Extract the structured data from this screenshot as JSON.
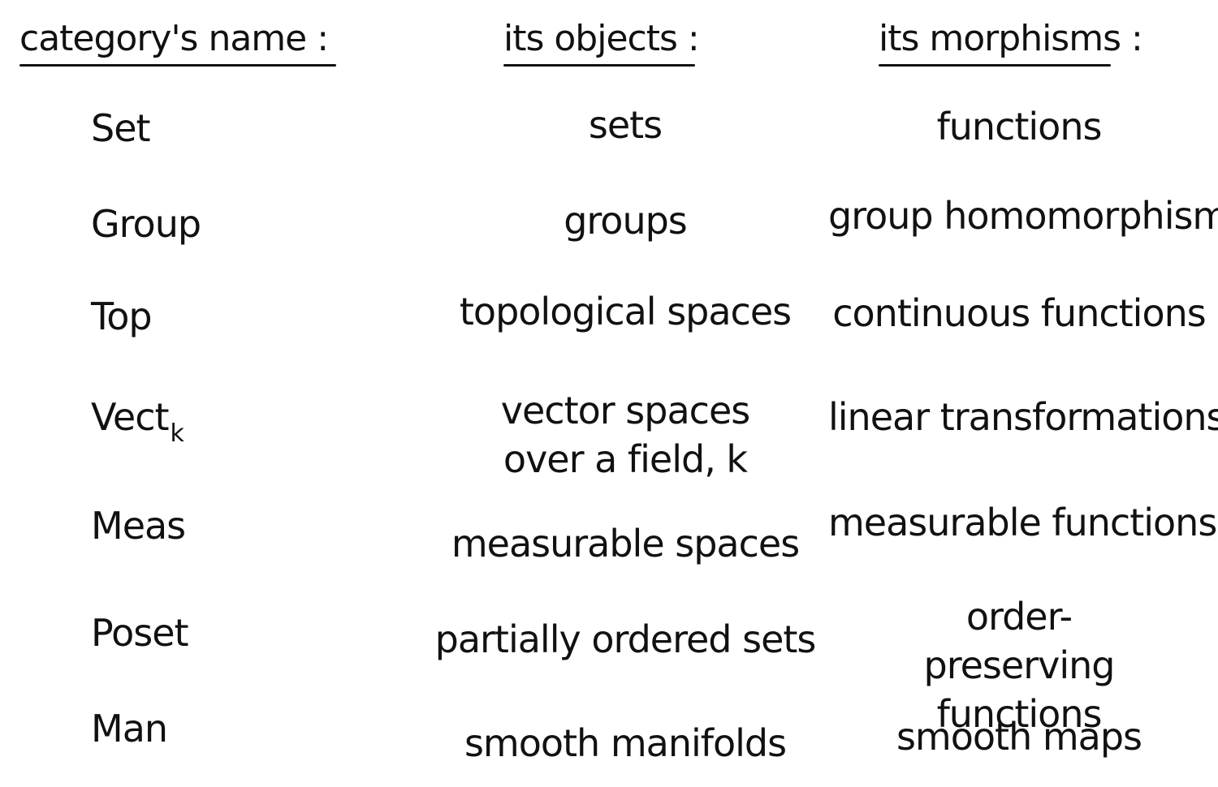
{
  "headers": {
    "name": "category's name :",
    "objects": "its objects :",
    "morphisms": "its morphisms :"
  },
  "rows": [
    {
      "name": "Set",
      "sub": "",
      "objects": "sets",
      "morphisms": "functions"
    },
    {
      "name": "Group",
      "sub": "",
      "objects": "groups",
      "morphisms": "group homomorphisms"
    },
    {
      "name": "Top",
      "sub": "",
      "objects": "topological spaces",
      "morphisms": "continuous functions"
    },
    {
      "name": "Vect",
      "sub": "k",
      "objects": "vector spaces over a field, k",
      "morphisms": "linear transformations"
    },
    {
      "name": "Meas",
      "sub": "",
      "objects": "measurable spaces",
      "morphisms": "measurable functions"
    },
    {
      "name": "Poset",
      "sub": "",
      "objects": "partially ordered sets",
      "morphisms": "order-preserving functions"
    },
    {
      "name": "Man",
      "sub": "",
      "objects": "smooth manifolds",
      "morphisms": "smooth maps"
    }
  ]
}
